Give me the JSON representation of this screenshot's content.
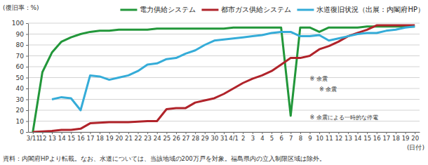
{
  "chart_data": {
    "type": "line",
    "y_label": "(復旧率：%)",
    "x_label": "(日付)",
    "note": "資料：内閣府HPより転載。なお、水道については、当該地域の200万戸を対象。福島県内の立入制限区域は除外。",
    "categories": [
      "3/11",
      "12",
      "13",
      "14",
      "15",
      "16",
      "17",
      "18",
      "19",
      "20",
      "21",
      "22",
      "23",
      "24",
      "25",
      "26",
      "27",
      "28",
      "29",
      "30",
      "31",
      "4/1",
      "2",
      "3",
      "4",
      "5",
      "6",
      "7",
      "8",
      "9",
      "10",
      "11",
      "12",
      "13",
      "14",
      "15",
      "16",
      "17",
      "18",
      "19",
      "20"
    ],
    "series": [
      {
        "name": "電力供給システム",
        "color": "#22973a",
        "values": [
          0,
          55,
          73,
          83,
          87,
          90,
          92,
          93,
          93,
          94,
          94,
          94,
          94,
          95,
          95,
          95,
          95,
          95,
          95,
          95,
          95,
          96,
          96,
          96,
          96,
          96,
          96,
          15,
          96,
          96,
          92,
          96,
          96,
          96,
          96,
          97,
          97,
          97,
          97,
          97,
          97
        ]
      },
      {
        "name": "都市ガス供給システム",
        "color": "#b0232a",
        "values": [
          0,
          0.5,
          1,
          2,
          2,
          3,
          8,
          8.5,
          9,
          9,
          9,
          9.5,
          10,
          10,
          21,
          22,
          22,
          27,
          29,
          31,
          35,
          40,
          45,
          49,
          52,
          56,
          62,
          68,
          68,
          70,
          76,
          79,
          83,
          88,
          91,
          94,
          98,
          98,
          98,
          98,
          98
        ]
      },
      {
        "name": "水道復旧状況（出展：内閣府HP）",
        "color": "#35acd8",
        "values": [
          null,
          null,
          30,
          32,
          31,
          20,
          52,
          51,
          48,
          50,
          52,
          56,
          62,
          63,
          67,
          68,
          72,
          75,
          80,
          84,
          85,
          86,
          87,
          88,
          89,
          91,
          92,
          92,
          88,
          88,
          89,
          84,
          86,
          88,
          90,
          91,
          91,
          93,
          94,
          96,
          97
        ]
      }
    ],
    "annotations": [
      {
        "text": "※ 余震",
        "x": 29,
        "y": 49
      },
      {
        "text": "※ 余震",
        "x": 30,
        "y": 39
      },
      {
        "text": "※ 余震による一時的な停電",
        "x": 29,
        "y": 13
      }
    ],
    "ylim": [
      0,
      100
    ],
    "yticks": [
      0,
      10,
      20,
      30,
      40,
      50,
      60,
      70,
      80,
      90,
      100
    ],
    "grid": true,
    "legend": "top"
  }
}
